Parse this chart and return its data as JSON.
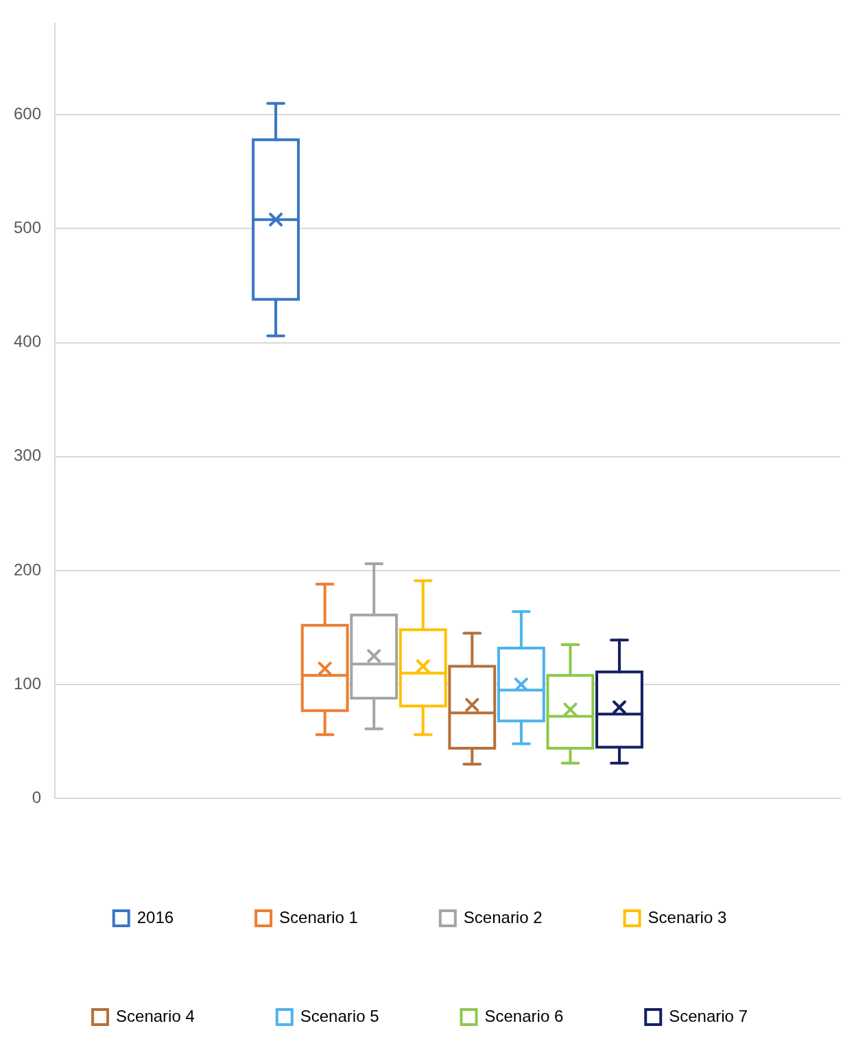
{
  "chart_data": {
    "type": "box",
    "categories": [
      null
    ],
    "series": [
      {
        "name": "2016",
        "color": "#3a76c4",
        "boxes": [
          {
            "low": 406,
            "q1": 438,
            "median": 508,
            "q3": 578,
            "high": 610,
            "mean": 508
          }
        ]
      },
      {
        "name": "Scenario 1",
        "color": "#ed7d31",
        "boxes": [
          {
            "low": 56,
            "q1": 77,
            "median": 108,
            "q3": 152,
            "high": 188,
            "mean": 114
          }
        ]
      },
      {
        "name": "Scenario 2",
        "color": "#a5a5a5",
        "boxes": [
          {
            "low": 61,
            "q1": 88,
            "median": 118,
            "q3": 161,
            "high": 206,
            "mean": 125
          }
        ]
      },
      {
        "name": "Scenario 3",
        "color": "#ffc000",
        "boxes": [
          {
            "low": 56,
            "q1": 81,
            "median": 110,
            "q3": 148,
            "high": 191,
            "mean": 116
          }
        ]
      },
      {
        "name": "Scenario 4",
        "color": "#b5703a",
        "boxes": [
          {
            "low": 30,
            "q1": 44,
            "median": 75,
            "q3": 116,
            "high": 145,
            "mean": 82
          }
        ]
      },
      {
        "name": "Scenario 5",
        "color": "#4db3ec",
        "boxes": [
          {
            "low": 48,
            "q1": 68,
            "median": 95,
            "q3": 132,
            "high": 164,
            "mean": 100
          }
        ]
      },
      {
        "name": "Scenario 6",
        "color": "#8cc84b",
        "boxes": [
          {
            "low": 31,
            "q1": 44,
            "median": 72,
            "q3": 108,
            "high": 135,
            "mean": 78
          }
        ]
      },
      {
        "name": "Scenario 7",
        "color": "#132062",
        "boxes": [
          {
            "low": 31,
            "q1": 45,
            "median": 74,
            "q3": 111,
            "high": 139,
            "mean": 80
          }
        ]
      }
    ],
    "ylim": [
      0,
      680
    ],
    "yticks": [
      0,
      100,
      200,
      300,
      400,
      500,
      600
    ],
    "grid": "y",
    "legend": "bottom"
  }
}
